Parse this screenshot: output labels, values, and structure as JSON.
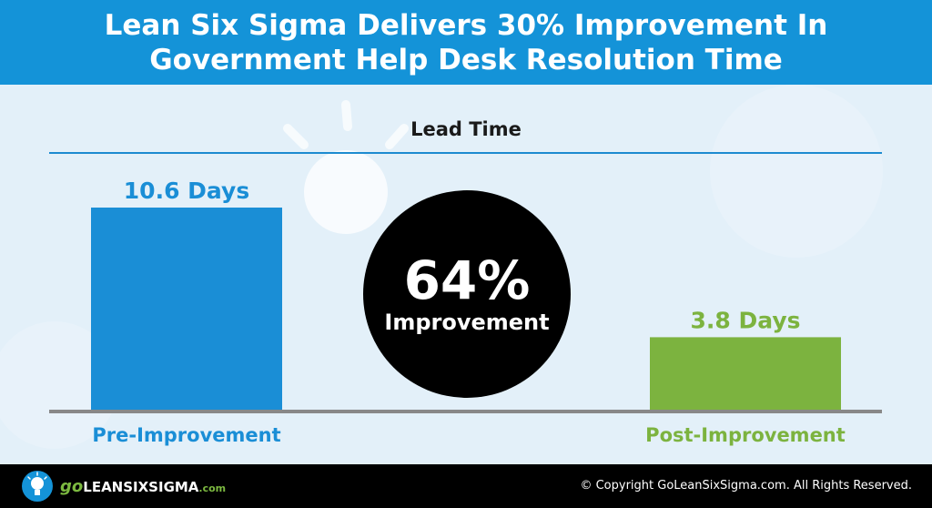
{
  "header": {
    "title_line1": "Lean Six Sigma Delivers 30% Improvement In",
    "title_line2": "Government Help Desk Resolution Time"
  },
  "chart_data": {
    "type": "bar",
    "title": "Lead Time",
    "categories": [
      "Pre-Improvement",
      "Post-Improvement"
    ],
    "values": [
      10.6,
      3.8
    ],
    "value_labels": [
      "10.6 Days",
      "3.8 Days"
    ],
    "unit": "Days",
    "colors": [
      "#1a8ed6",
      "#7cb33f"
    ],
    "ylim": [
      0,
      10.6
    ],
    "grid": false,
    "legend": "none",
    "annotation": {
      "value": "64%",
      "label": "Improvement"
    }
  },
  "footer": {
    "logo": {
      "go": "go",
      "brand": "LEANSIXSIGMA",
      "domain": ".com"
    },
    "copyright": "© Copyright GoLeanSixSigma.com. All Rights Reserved."
  },
  "colors": {
    "header_bg": "#1493d8",
    "panel_bg": "#e3f0f9",
    "pre_bar": "#1a8ed6",
    "post_bar": "#7cb33f",
    "baseline": "#888888",
    "footer_bg": "#000000"
  }
}
